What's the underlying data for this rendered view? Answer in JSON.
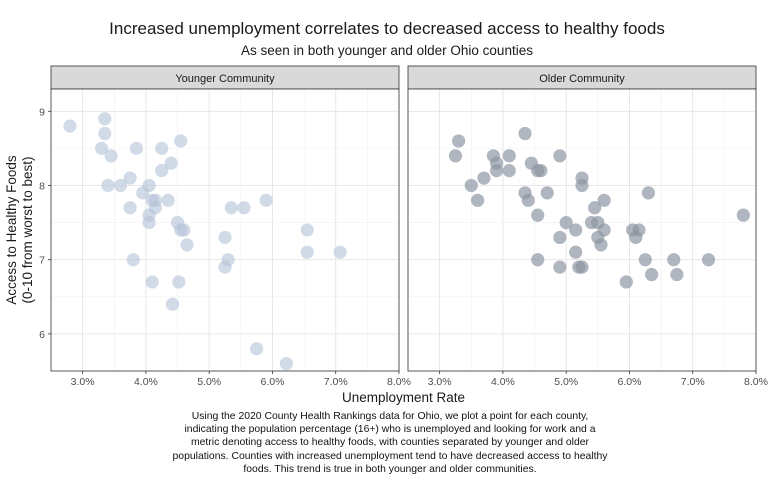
{
  "chart_data": {
    "type": "scatter",
    "title": "Increased unemployment correlates to decreased access to healthy foods",
    "subtitle": "As seen in both younger and older Ohio counties",
    "xlabel": "Unemployment Rate",
    "ylabel": "Access to Healthy Foods",
    "ylabel_sub": "(0-10 from worst to best)",
    "xlim": [
      2.5,
      8.0
    ],
    "ylim": [
      5.5,
      9.3
    ],
    "x_ticks": [
      3.0,
      4.0,
      5.0,
      6.0,
      7.0,
      8.0
    ],
    "x_tick_labels": [
      "3.0%",
      "4.0%",
      "5.0%",
      "6.0%",
      "7.0%",
      "8.0%"
    ],
    "y_ticks": [
      6,
      7,
      8,
      9
    ],
    "y_tick_labels": [
      "6",
      "7",
      "8",
      "9"
    ],
    "grid": true,
    "caption": "Using the 2020 County Health Rankings data for Ohio, we plot a point for each county, indicating the population percentage (16+) who is unemployed and looking for work and a metric denoting access to healthy foods, with counties separated by younger and older populations. Counties with increased unemployment tend to have decreased access to healthy foods. This trend is true in both younger and older communities.",
    "panels": [
      {
        "name": "Younger Community",
        "color": "#b4c3d8",
        "points": [
          [
            2.8,
            8.8
          ],
          [
            3.35,
            8.9
          ],
          [
            3.35,
            8.7
          ],
          [
            3.3,
            8.5
          ],
          [
            3.45,
            8.4
          ],
          [
            3.4,
            8.0
          ],
          [
            3.6,
            8.0
          ],
          [
            3.75,
            8.1
          ],
          [
            3.85,
            8.5
          ],
          [
            3.75,
            7.7
          ],
          [
            3.8,
            7.0
          ],
          [
            3.95,
            7.9
          ],
          [
            4.05,
            8.0
          ],
          [
            4.1,
            7.8
          ],
          [
            4.15,
            7.8
          ],
          [
            4.05,
            7.6
          ],
          [
            4.05,
            7.5
          ],
          [
            4.15,
            7.7
          ],
          [
            4.25,
            8.5
          ],
          [
            4.25,
            8.2
          ],
          [
            4.35,
            7.8
          ],
          [
            4.4,
            8.3
          ],
          [
            4.55,
            8.6
          ],
          [
            4.5,
            7.5
          ],
          [
            4.55,
            7.4
          ],
          [
            4.6,
            7.4
          ],
          [
            4.65,
            7.2
          ],
          [
            4.1,
            6.7
          ],
          [
            4.52,
            6.7
          ],
          [
            4.42,
            6.4
          ],
          [
            5.25,
            7.3
          ],
          [
            5.3,
            7.0
          ],
          [
            5.35,
            7.7
          ],
          [
            5.25,
            6.9
          ],
          [
            5.55,
            7.7
          ],
          [
            5.9,
            7.8
          ],
          [
            6.55,
            7.4
          ],
          [
            6.55,
            7.1
          ],
          [
            7.07,
            7.1
          ],
          [
            5.75,
            5.8
          ],
          [
            6.22,
            5.6
          ]
        ]
      },
      {
        "name": "Older Community",
        "color": "#8a93a0",
        "points": [
          [
            3.3,
            8.6
          ],
          [
            3.25,
            8.4
          ],
          [
            3.5,
            8.0
          ],
          [
            3.6,
            7.8
          ],
          [
            3.7,
            8.1
          ],
          [
            3.85,
            8.4
          ],
          [
            3.9,
            8.3
          ],
          [
            3.9,
            8.2
          ],
          [
            4.1,
            8.4
          ],
          [
            4.1,
            8.2
          ],
          [
            4.35,
            8.7
          ],
          [
            4.45,
            8.3
          ],
          [
            4.55,
            8.2
          ],
          [
            4.6,
            8.2
          ],
          [
            4.35,
            7.9
          ],
          [
            4.4,
            7.8
          ],
          [
            4.7,
            7.9
          ],
          [
            4.55,
            7.6
          ],
          [
            4.9,
            8.4
          ],
          [
            5.25,
            8.1
          ],
          [
            5.25,
            8.0
          ],
          [
            5.0,
            7.5
          ],
          [
            5.15,
            7.4
          ],
          [
            4.9,
            7.3
          ],
          [
            5.4,
            7.5
          ],
          [
            5.45,
            7.7
          ],
          [
            5.5,
            7.5
          ],
          [
            5.6,
            7.8
          ],
          [
            5.6,
            7.4
          ],
          [
            5.5,
            7.3
          ],
          [
            5.55,
            7.2
          ],
          [
            5.15,
            7.1
          ],
          [
            4.55,
            7.0
          ],
          [
            4.9,
            6.9
          ],
          [
            5.25,
            6.9
          ],
          [
            5.2,
            6.9
          ],
          [
            5.95,
            6.7
          ],
          [
            6.05,
            7.4
          ],
          [
            6.15,
            7.4
          ],
          [
            6.1,
            7.3
          ],
          [
            6.25,
            7.0
          ],
          [
            6.3,
            7.9
          ],
          [
            6.35,
            6.8
          ],
          [
            6.7,
            7.0
          ],
          [
            6.75,
            6.8
          ],
          [
            7.25,
            7.0
          ],
          [
            7.8,
            7.6
          ]
        ]
      }
    ]
  }
}
